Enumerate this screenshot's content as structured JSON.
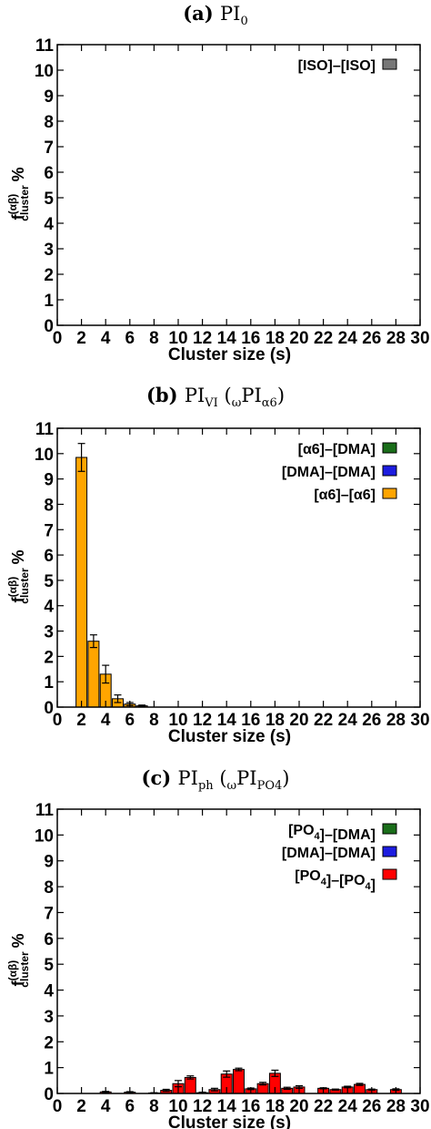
{
  "chart_data": [
    {
      "type": "bar",
      "caption": {
        "letter": "(a)",
        "name": "PI",
        "sub": "0",
        "extra": ""
      },
      "xlabel": "Cluster size  (s)",
      "ylabel": {
        "main": "f",
        "sup": "(αβ)",
        "sub": "cluster",
        "unit": "%"
      },
      "xlim": [
        0,
        30
      ],
      "ylim": [
        0,
        11
      ],
      "xticks": [
        "0",
        "2",
        "4",
        "6",
        "8",
        "10",
        "12",
        "14",
        "16",
        "18",
        "20",
        "22",
        "24",
        "26",
        "28",
        "30"
      ],
      "yticks": [
        "0",
        "1",
        "2",
        "3",
        "4",
        "5",
        "6",
        "7",
        "8",
        "9",
        "10",
        "11"
      ],
      "legend_position": "top-right",
      "series": [
        {
          "name": "[ISO]–[ISO]",
          "color": "#777777",
          "x": [],
          "values": [],
          "errors": []
        }
      ]
    },
    {
      "type": "bar",
      "caption": {
        "letter": "(b)",
        "name": "PI",
        "sub": "VI",
        "extra": "(ωPIα6)"
      },
      "xlabel": "Cluster size  (s)",
      "ylabel": {
        "main": "f",
        "sup": "(αβ)",
        "sub": "cluster",
        "unit": "%"
      },
      "xlim": [
        0,
        30
      ],
      "ylim": [
        0,
        11
      ],
      "xticks": [
        "0",
        "2",
        "4",
        "6",
        "8",
        "10",
        "12",
        "14",
        "16",
        "18",
        "20",
        "22",
        "24",
        "26",
        "28",
        "30"
      ],
      "yticks": [
        "0",
        "1",
        "2",
        "3",
        "4",
        "5",
        "6",
        "7",
        "8",
        "9",
        "10",
        "11"
      ],
      "legend_position": "top-right",
      "series": [
        {
          "name": "[α6]–[DMA]",
          "color": "#1a6e1a",
          "x": [],
          "values": [],
          "errors": []
        },
        {
          "name": "[DMA]–[DMA]",
          "color": "#1c1ce0",
          "x": [],
          "values": [],
          "errors": []
        },
        {
          "name": "[α6]–[α6]",
          "color": "#ffa500",
          "x": [
            2,
            3,
            4,
            5,
            6,
            7
          ],
          "values": [
            9.85,
            2.6,
            1.3,
            0.33,
            0.12,
            0.05
          ],
          "errors": [
            0.55,
            0.25,
            0.35,
            0.15,
            0.06,
            0.03
          ]
        }
      ]
    },
    {
      "type": "bar",
      "caption": {
        "letter": "(c)",
        "name": "PI",
        "sub": "ph",
        "extra": "(ωPIPO4)"
      },
      "xlabel": "Cluster size  (s)",
      "ylabel": {
        "main": "f",
        "sup": "(αβ)",
        "sub": "cluster",
        "unit": "%"
      },
      "xlim": [
        0,
        30
      ],
      "ylim": [
        0,
        11
      ],
      "xticks": [
        "0",
        "2",
        "4",
        "6",
        "8",
        "10",
        "12",
        "14",
        "16",
        "18",
        "20",
        "22",
        "24",
        "26",
        "28",
        "30"
      ],
      "yticks": [
        "0",
        "1",
        "2",
        "3",
        "4",
        "5",
        "6",
        "7",
        "8",
        "9",
        "10",
        "11"
      ],
      "legend_position": "top-right",
      "series": [
        {
          "name": "[PO4]–[DMA]",
          "color": "#1a6e1a",
          "x": [],
          "values": [],
          "errors": []
        },
        {
          "name": "[DMA]–[DMA]",
          "color": "#1c1ce0",
          "x": [],
          "values": [],
          "errors": []
        },
        {
          "name": "[PO4]–[PO4]",
          "color": "#ff0000",
          "x": [
            4,
            6,
            8,
            9,
            10,
            11,
            12,
            13,
            14,
            15,
            16,
            17,
            18,
            19,
            20,
            21,
            22,
            23,
            24,
            25,
            26,
            27,
            28
          ],
          "values": [
            0.06,
            0.05,
            0.02,
            0.12,
            0.38,
            0.62,
            0.03,
            0.15,
            0.75,
            0.93,
            0.18,
            0.38,
            0.78,
            0.2,
            0.25,
            0.0,
            0.2,
            0.15,
            0.25,
            0.35,
            0.15,
            0.0,
            0.15
          ],
          "errors": [
            0.02,
            0.02,
            0.01,
            0.04,
            0.12,
            0.06,
            0.02,
            0.05,
            0.12,
            0.05,
            0.03,
            0.05,
            0.12,
            0.04,
            0.05,
            0.0,
            0.02,
            0.02,
            0.03,
            0.04,
            0.02,
            0.0,
            0.03
          ]
        }
      ]
    }
  ]
}
